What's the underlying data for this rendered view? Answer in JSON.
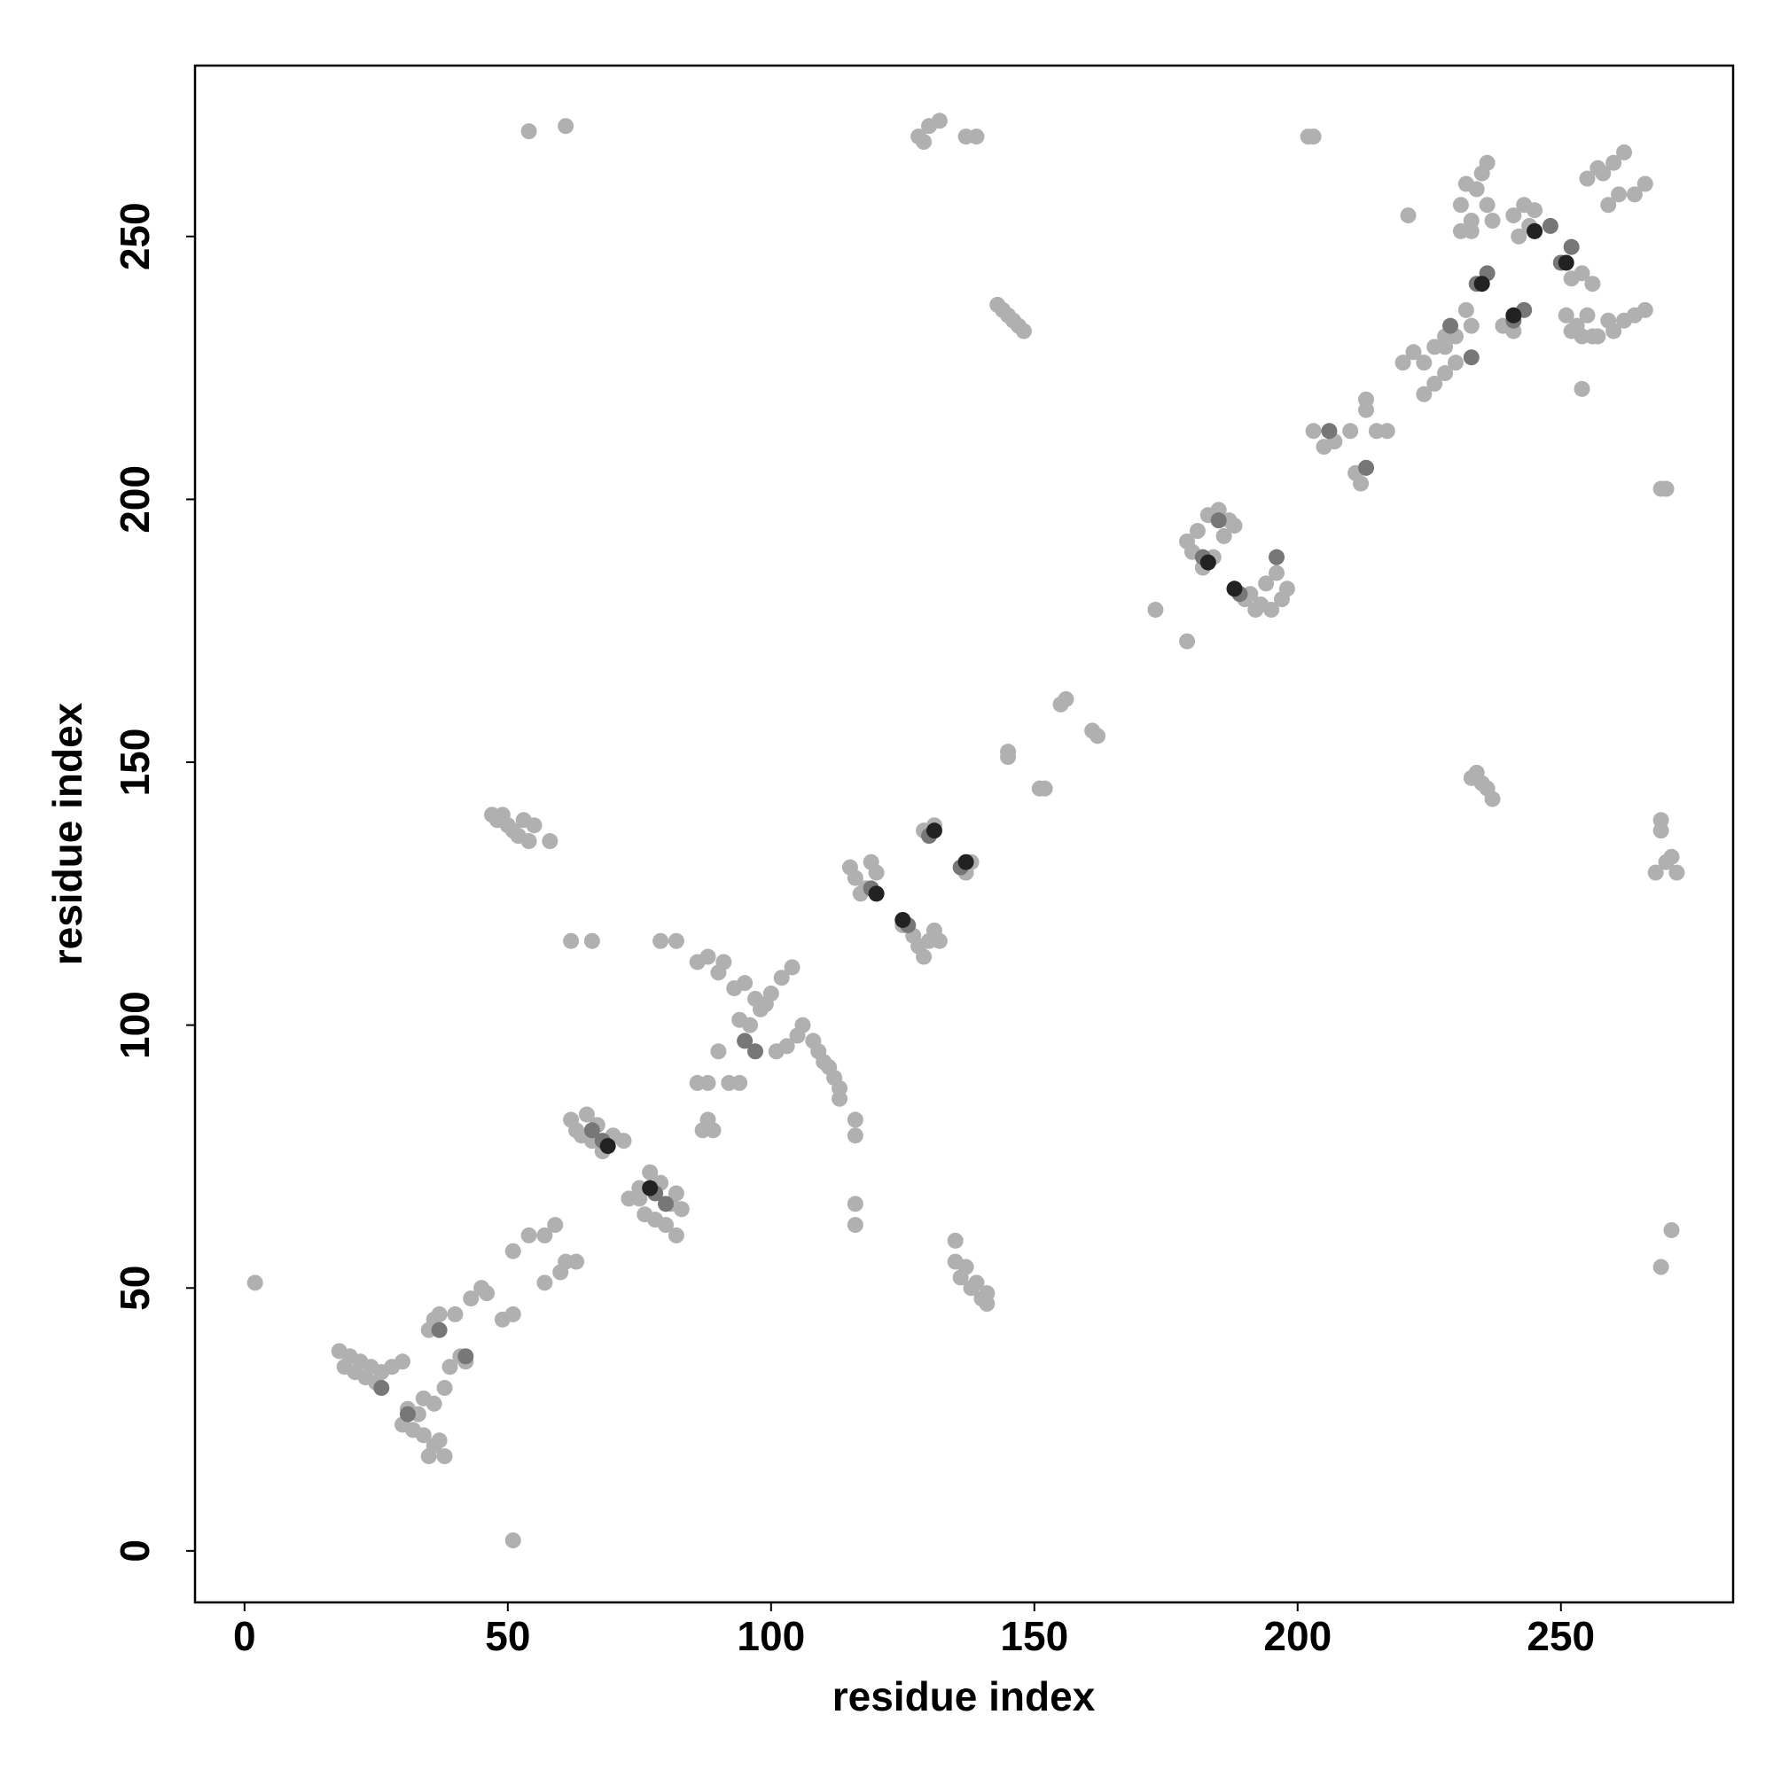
{
  "chart_data": {
    "type": "scatter",
    "x_label": "residue index",
    "y_label": "residue index",
    "xlim": [
      -9.4,
      282.7
    ],
    "ylim": [
      -9.8,
      282.5
    ],
    "xticks": [
      0,
      50,
      100,
      150,
      200,
      250
    ],
    "yticks": [
      0,
      50,
      100,
      150,
      200,
      250
    ],
    "series": [
      {
        "color": "#b0b0b0",
        "x": [
          2,
          51,
          54,
          61,
          130,
          128,
          132,
          129,
          137,
          139,
          202,
          203,
          269,
          270,
          269,
          271,
          269,
          269,
          268,
          270,
          272,
          271,
          173,
          179,
          156,
          155,
          162,
          161,
          145,
          152,
          151,
          145,
          232,
          231,
          233,
          234,
          236,
          235,
          231,
          233,
          236,
          237,
          221,
          254,
          256,
          253,
          259,
          262,
          257,
          260,
          264,
          266,
          251,
          255,
          252,
          254,
          258,
          260,
          262,
          264,
          266,
          255,
          257,
          259,
          261,
          243,
          241,
          245,
          239,
          241,
          254,
          256,
          252,
          244,
          242,
          232,
          228,
          230,
          226,
          233,
          224,
          228,
          226,
          228,
          230,
          222,
          224,
          220,
          215,
          217,
          213,
          213,
          203,
          205,
          207,
          211,
          212,
          210,
          213,
          179,
          180,
          181,
          183,
          185,
          187,
          182,
          184,
          186,
          188,
          191,
          193,
          195,
          197,
          198,
          196,
          194,
          192,
          190,
          115,
          116,
          118,
          119,
          120,
          117,
          125,
          127,
          128,
          129,
          130,
          131,
          132,
          129,
          131,
          137,
          138,
          47,
          48,
          49,
          50,
          51,
          52,
          53,
          54,
          55,
          58,
          143,
          144,
          145,
          146,
          147,
          148,
          233,
          234,
          235,
          236,
          237,
          135,
          135,
          136,
          137,
          138,
          139,
          140,
          141,
          141,
          62,
          66,
          79,
          82,
          116,
          116,
          116,
          116,
          86,
          88,
          90,
          91,
          93,
          95,
          97,
          99,
          94,
          96,
          98,
          100,
          102,
          104,
          106,
          108,
          110,
          112,
          113,
          113,
          109,
          111,
          103,
          101,
          105,
          92,
          94,
          90,
          88,
          89,
          87,
          86,
          88,
          62,
          63,
          65,
          67,
          70,
          72,
          66,
          68,
          64,
          75,
          76,
          78,
          80,
          82,
          81,
          83,
          79,
          77,
          73,
          75,
          82,
          57,
          59,
          61,
          63,
          57,
          60,
          51,
          54,
          51,
          49,
          45,
          46,
          43,
          40,
          41,
          39,
          42,
          37,
          35,
          36,
          18,
          20,
          22,
          24,
          26,
          28,
          30,
          19,
          21,
          23,
          25,
          30,
          32,
          34,
          36,
          38,
          35,
          37,
          33,
          36,
          38,
          31,
          34
        ],
        "values": [
          51,
          2,
          270,
          271,
          271,
          269,
          272,
          268,
          269,
          269,
          269,
          269,
          202,
          202,
          54,
          61,
          139,
          137,
          129,
          131,
          129,
          132,
          179,
          173,
          162,
          161,
          155,
          156,
          152,
          145,
          145,
          151,
          260,
          256,
          253,
          259,
          264,
          262,
          251,
          251,
          256,
          253,
          254,
          221,
          231,
          233,
          234,
          234,
          231,
          232,
          235,
          236,
          235,
          235,
          232,
          231,
          262,
          264,
          266,
          258,
          260,
          261,
          263,
          256,
          258,
          256,
          254,
          255,
          233,
          232,
          243,
          241,
          242,
          252,
          250,
          236,
          229,
          231,
          229,
          233,
          226,
          231,
          222,
          224,
          226,
          228,
          220,
          226,
          213,
          213,
          217,
          219,
          213,
          210,
          211,
          205,
          203,
          213,
          206,
          192,
          190,
          194,
          197,
          198,
          196,
          187,
          189,
          193,
          195,
          182,
          180,
          179,
          181,
          183,
          186,
          184,
          179,
          181,
          130,
          128,
          126,
          131,
          129,
          125,
          119,
          117,
          115,
          113,
          116,
          118,
          116,
          137,
          138,
          129,
          131,
          140,
          139,
          140,
          138,
          137,
          136,
          139,
          135,
          138,
          135,
          237,
          236,
          235,
          234,
          233,
          232,
          147,
          148,
          146,
          145,
          143,
          59,
          55,
          52,
          54,
          50,
          51,
          48,
          47,
          49,
          116,
          116,
          116,
          116,
          82,
          79,
          66,
          62,
          112,
          113,
          110,
          112,
          107,
          108,
          105,
          104,
          101,
          100,
          103,
          106,
          109,
          111,
          100,
          97,
          93,
          90,
          88,
          86,
          95,
          92,
          96,
          95,
          98,
          89,
          89,
          95,
          82,
          80,
          80,
          89,
          89,
          82,
          80,
          83,
          81,
          79,
          78,
          78,
          76,
          79,
          67,
          64,
          63,
          62,
          60,
          66,
          65,
          70,
          72,
          67,
          69,
          68,
          60,
          62,
          55,
          55,
          51,
          53,
          57,
          60,
          45,
          44,
          50,
          49,
          48,
          45,
          37,
          35,
          36,
          45,
          42,
          44,
          38,
          37,
          36,
          35,
          34,
          35,
          36,
          35,
          34,
          33,
          32,
          24,
          23,
          22,
          20,
          18,
          18,
          21,
          26,
          28,
          31,
          27,
          29
        ]
      },
      {
        "color": "#777777",
        "x": [
          234,
          236,
          241,
          243,
          245,
          250,
          248,
          252,
          229,
          233,
          206,
          213,
          182,
          189,
          185,
          196,
          119,
          126,
          130,
          136,
          68,
          78,
          66,
          80,
          97,
          95,
          37,
          42,
          26,
          31
        ],
        "values": [
          241,
          243,
          234,
          236,
          251,
          245,
          252,
          248,
          233,
          227,
          213,
          206,
          189,
          182,
          196,
          189,
          126,
          119,
          136,
          130,
          78,
          68,
          80,
          66,
          95,
          97,
          42,
          37,
          31,
          26
        ]
      },
      {
        "color": "#222222",
        "x": [
          235,
          241,
          245,
          251,
          183,
          188,
          120,
          125,
          131,
          137,
          69,
          77
        ],
        "values": [
          241,
          235,
          251,
          245,
          188,
          183,
          125,
          120,
          137,
          131,
          77,
          69
        ]
      }
    ]
  }
}
